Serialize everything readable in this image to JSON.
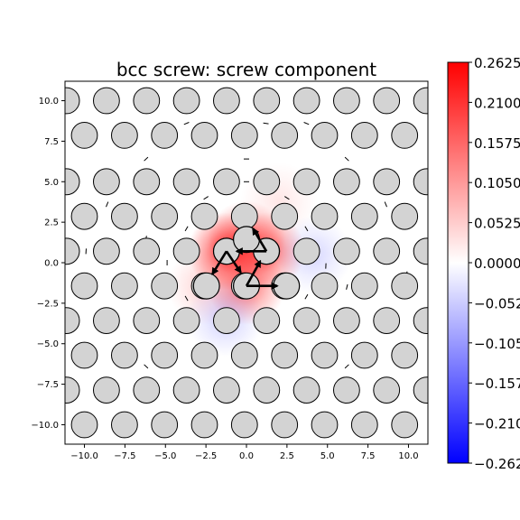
{
  "chart_data": {
    "type": "heatmap",
    "title": "bcc screw: screw component",
    "xlabel": "",
    "ylabel": "",
    "xlim": [
      -11.2,
      11.2
    ],
    "ylim": [
      -11.2,
      11.2
    ],
    "x_ticks": [
      -10.0,
      -7.5,
      -5.0,
      -2.5,
      0.0,
      2.5,
      5.0,
      7.5,
      10.0
    ],
    "y_ticks": [
      -10.0,
      -7.5,
      -5.0,
      -2.5,
      0.0,
      2.5,
      5.0,
      7.5,
      10.0
    ],
    "x_tick_labels": [
      "−10.0",
      "−7.5",
      "−5.0",
      "−2.5",
      "0.0",
      "2.5",
      "5.0",
      "7.5",
      "10.0"
    ],
    "y_tick_labels": [
      "−10.0",
      "−7.5",
      "−5.0",
      "−2.5",
      "0.0",
      "2.5",
      "5.0",
      "7.5",
      "10.0"
    ],
    "grid": false,
    "colormap": "bwr",
    "color_range": [
      -0.2625,
      0.2625
    ],
    "colorbar_ticks": [
      0.2625,
      0.21,
      0.1575,
      0.105,
      0.0525,
      0.0,
      -0.0525,
      -0.105,
      -0.1575,
      -0.21,
      -0.2625
    ],
    "colorbar_tick_labels": [
      "0.2625",
      "0.2100",
      "0.1575",
      "0.1050",
      "0.0525",
      "0.0000",
      "−0.0525",
      "−0.1050",
      "−0.1575",
      "−0.2100",
      "−0.2625"
    ],
    "colorbar_position": "right",
    "lattice": {
      "spacing_x": 2.47,
      "row_spacing_y": 0.713,
      "row_step_y": 2.14,
      "row_offset_x": 1.235,
      "atom_fill": "#d3d3d3",
      "atom_edge": "#000000"
    },
    "core_atoms": [
      {
        "x": -1.23,
        "y": 0.71
      },
      {
        "x": 1.23,
        "y": 0.71
      },
      {
        "x": 0.0,
        "y": 1.43
      },
      {
        "x": -2.47,
        "y": -1.43
      },
      {
        "x": 0.0,
        "y": -1.43
      },
      {
        "x": 2.47,
        "y": -1.43
      }
    ],
    "displacement_field": [
      {
        "x": -1.23,
        "y": 0.71,
        "amp": 0.262
      },
      {
        "x": 1.23,
        "y": 0.71,
        "amp": 0.2
      },
      {
        "x": 0.0,
        "y": 1.43,
        "amp": 0.16
      },
      {
        "x": 0.0,
        "y": -1.43,
        "amp": 0.18
      },
      {
        "x": -2.47,
        "y": -1.43,
        "amp": 0.06
      },
      {
        "x": -1.3,
        "y": -3.4,
        "amp": -0.06
      },
      {
        "x": 4.1,
        "y": 0.5,
        "amp": -0.05
      },
      {
        "x": 2.0,
        "y": 3.8,
        "amp": 0.03
      }
    ],
    "core_arrows": [
      {
        "from": [
          1.23,
          0.71
        ],
        "to": [
          -0.6,
          0.71
        ]
      },
      {
        "from": [
          0.0,
          -1.43
        ],
        "to": [
          1.9,
          -1.43
        ]
      },
      {
        "from": [
          -1.23,
          0.71
        ],
        "to": [
          -0.35,
          -0.6
        ]
      },
      {
        "from": [
          0.0,
          -1.43
        ],
        "to": [
          0.85,
          0.1
        ]
      },
      {
        "from": [
          1.23,
          0.71
        ],
        "to": [
          0.4,
          2.1
        ]
      },
      {
        "from": [
          -1.23,
          0.71
        ],
        "to": [
          -2.1,
          -0.7
        ]
      }
    ]
  }
}
